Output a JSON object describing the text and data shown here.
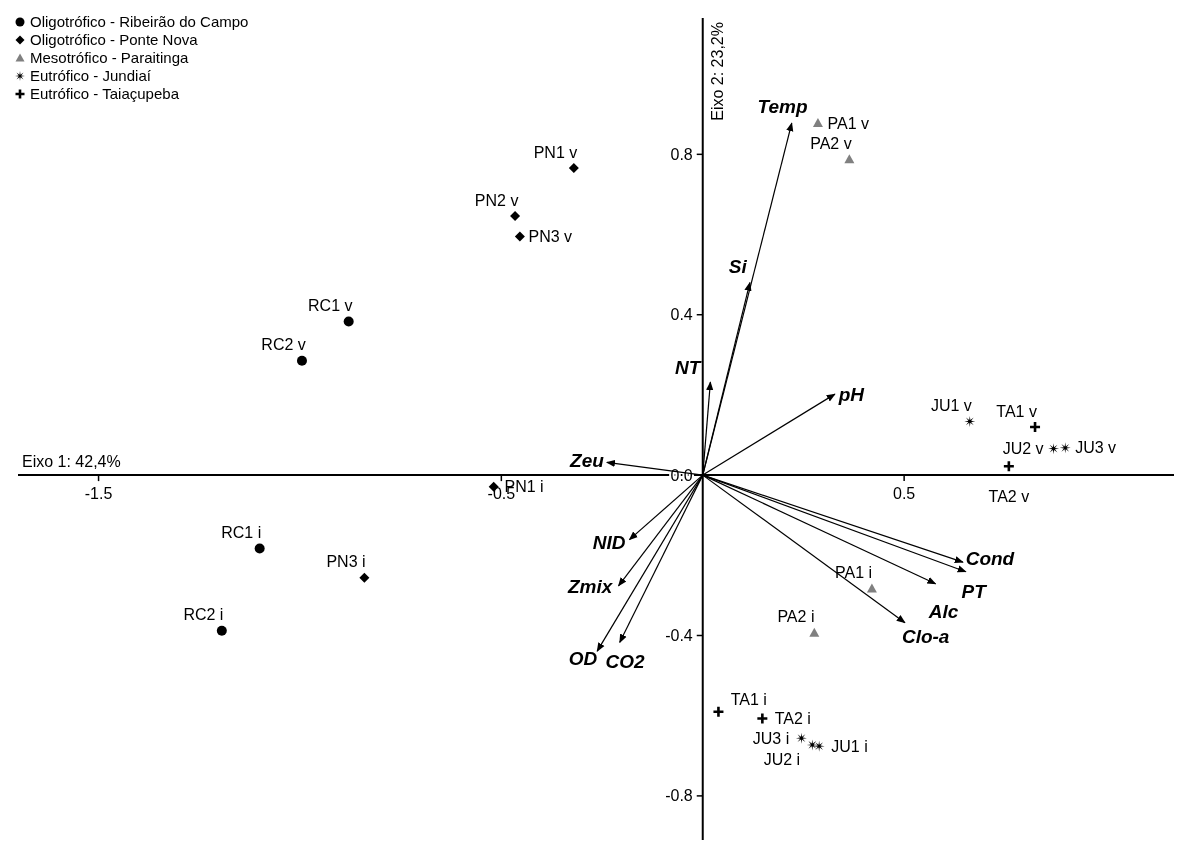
{
  "chart_data": {
    "type": "scatter",
    "xlabel": "Eixo 1: 42,4%",
    "ylabel": "Eixo 2: 23,2%",
    "xlim": [
      -1.7,
      1.17
    ],
    "ylim": [
      -0.91,
      1.14
    ],
    "xticks": [
      -1.5,
      -0.5,
      0.5
    ],
    "yticks": [
      -0.8,
      -0.4,
      {
        "value": 0,
        "label": "0.0"
      },
      0.4,
      0.8
    ],
    "legend": "top left",
    "grid": false,
    "series": [
      {
        "name": "Oligotrófico - Ribeirão do Campo",
        "marker": "circle",
        "color": "#000000",
        "x": [
          -0.879,
          -0.995,
          -1.1,
          -1.194
        ],
        "values": [
          0.383,
          0.285,
          -0.183,
          -0.388
        ]
      },
      {
        "name": "Oligotrófico - Ponte Nova",
        "marker": "diamond",
        "color": "#000000",
        "x": [
          -0.32,
          -0.466,
          -0.454,
          -0.519,
          -0.84
        ],
        "values": [
          0.766,
          0.646,
          0.595,
          -0.029,
          -0.256
        ]
      },
      {
        "name": "Mesotrófico - Paraitinga",
        "marker": "triangle",
        "color": "#808080",
        "x": [
          0.286,
          0.364,
          0.42,
          0.277
        ],
        "values": [
          0.878,
          0.788,
          -0.283,
          -0.393
        ]
      },
      {
        "name": "Eutrófico - Jundiaí",
        "marker": "star",
        "color": "#000000",
        "x": [
          0.663,
          0.871,
          0.9,
          0.245,
          0.289,
          0.272
        ],
        "values": [
          0.134,
          0.066,
          0.068,
          -0.656,
          -0.676,
          -0.673
        ]
      },
      {
        "name": "Eutrófico - Taiaçupeba",
        "marker": "cross",
        "color": "#000000",
        "x": [
          0.825,
          0.76,
          0.039,
          0.148
        ],
        "values": [
          0.12,
          0.022,
          -0.59,
          -0.607
        ]
      },
      {
        "name": "Temp",
        "type": "line",
        "marker": "none",
        "color": "#000000",
        "x": [
          0,
          0.221
        ],
        "values": [
          0,
          0.878
        ]
      },
      {
        "name": "Si",
        "type": "line",
        "marker": "none",
        "color": "#000000",
        "x": [
          0,
          0.117
        ],
        "values": [
          0,
          0.48
        ]
      },
      {
        "name": "NT",
        "type": "line",
        "marker": "none",
        "color": "#000000",
        "x": [
          0,
          0.019
        ],
        "values": [
          0,
          0.232
        ]
      },
      {
        "name": "pH",
        "type": "line",
        "marker": "none",
        "color": "#000000",
        "x": [
          0,
          0.328
        ],
        "values": [
          0,
          0.202
        ]
      },
      {
        "name": "Zeu",
        "type": "line",
        "marker": "none",
        "color": "#000000",
        "x": [
          0,
          -0.238
        ],
        "values": [
          0,
          0.032
        ]
      },
      {
        "name": "NID",
        "type": "line",
        "marker": "none",
        "color": "#000000",
        "x": [
          0,
          -0.182
        ],
        "values": [
          0,
          -0.161
        ]
      },
      {
        "name": "Zmix",
        "type": "line",
        "marker": "none",
        "color": "#000000",
        "x": [
          0,
          -0.209
        ],
        "values": [
          0,
          -0.276
        ]
      },
      {
        "name": "OD",
        "type": "line",
        "marker": "none",
        "color": "#000000",
        "x": [
          0,
          -0.262
        ],
        "values": [
          0,
          -0.439
        ]
      },
      {
        "name": "CO2",
        "type": "line",
        "marker": "none",
        "color": "#000000",
        "x": [
          0,
          -0.206
        ],
        "values": [
          0,
          -0.417
        ]
      },
      {
        "name": "Cond",
        "type": "line",
        "marker": "none",
        "color": "#000000",
        "x": [
          0,
          0.646
        ],
        "values": [
          0,
          -0.217
        ]
      },
      {
        "name": "PT",
        "type": "line",
        "marker": "none",
        "color": "#000000",
        "x": [
          0,
          0.653
        ],
        "values": [
          0,
          -0.241
        ]
      },
      {
        "name": "Alc",
        "type": "line",
        "marker": "none",
        "color": "#000000",
        "x": [
          0,
          0.578
        ],
        "values": [
          0,
          -0.271
        ]
      },
      {
        "name": "Clo-a",
        "type": "line",
        "marker": "none",
        "color": "#000000",
        "x": [
          0,
          0.502
        ],
        "values": [
          0,
          -0.368
        ]
      }
    ],
    "annotations": [
      {
        "text": "RC1 v",
        "x": -0.879,
        "y": 0.383
      },
      {
        "text": "RC2 v",
        "x": -0.995,
        "y": 0.285
      },
      {
        "text": "RC1 i",
        "x": -1.1,
        "y": -0.183
      },
      {
        "text": "RC2 i",
        "x": -1.194,
        "y": -0.388
      },
      {
        "text": "PN1 v",
        "x": -0.32,
        "y": 0.766
      },
      {
        "text": "PN2 v",
        "x": -0.466,
        "y": 0.646
      },
      {
        "text": "PN3 v",
        "x": -0.454,
        "y": 0.595
      },
      {
        "text": "PN1 i",
        "x": -0.519,
        "y": -0.029
      },
      {
        "text": "PN3 i",
        "x": -0.84,
        "y": -0.256
      },
      {
        "text": "PA1 v",
        "x": 0.286,
        "y": 0.878
      },
      {
        "text": "PA2 v",
        "x": 0.364,
        "y": 0.788
      },
      {
        "text": "PA1 i",
        "x": 0.42,
        "y": -0.283
      },
      {
        "text": "PA2 i",
        "x": 0.277,
        "y": -0.393
      },
      {
        "text": "JU1 v",
        "x": 0.663,
        "y": 0.134
      },
      {
        "text": "JU2 v",
        "x": 0.871,
        "y": 0.066
      },
      {
        "text": "JU3 v",
        "x": 0.9,
        "y": 0.068
      },
      {
        "text": "JU3 i",
        "x": 0.245,
        "y": -0.656
      },
      {
        "text": "JU1 i",
        "x": 0.289,
        "y": -0.676
      },
      {
        "text": "JU2 i",
        "x": 0.272,
        "y": -0.673
      },
      {
        "text": "TA1 v",
        "x": 0.825,
        "y": 0.12
      },
      {
        "text": "TA2 v",
        "x": 0.76,
        "y": 0.022
      },
      {
        "text": "TA1 i",
        "x": 0.039,
        "y": -0.59
      },
      {
        "text": "TA2 i",
        "x": 0.148,
        "y": -0.607
      }
    ]
  }
}
